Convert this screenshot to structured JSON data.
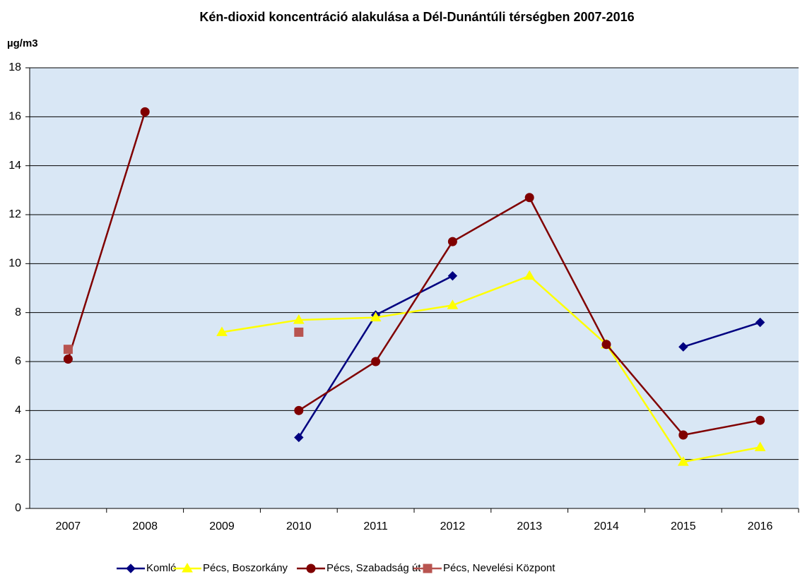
{
  "chart_data": {
    "type": "line",
    "title": "Kén-dioxid koncentráció alakulása a Dél-Dunántúli térségben 2007-2016",
    "y_axis_label": "µg/m3",
    "categories": [
      "2007",
      "2008",
      "2009",
      "2010",
      "2011",
      "2012",
      "2013",
      "2014",
      "2015",
      "2016"
    ],
    "series": [
      {
        "name": "Komló",
        "color": "#000080",
        "marker": "diamond",
        "values": [
          null,
          null,
          null,
          2.9,
          7.9,
          9.5,
          null,
          null,
          6.6,
          7.6
        ]
      },
      {
        "name": "Pécs, Boszorkány",
        "color": "#ffff00",
        "marker": "triangle",
        "values": [
          null,
          null,
          7.2,
          7.7,
          7.8,
          8.3,
          9.5,
          6.7,
          1.9,
          2.5
        ]
      },
      {
        "name": "Pécs, Szabadság út",
        "color": "#800000",
        "marker": "circle",
        "values": [
          6.1,
          16.2,
          null,
          4.0,
          6.0,
          10.9,
          12.7,
          6.7,
          3.0,
          3.6
        ]
      },
      {
        "name": "Pécs, Nevelési Központ",
        "color": "#b85450",
        "marker": "square",
        "values": [
          6.5,
          null,
          null,
          7.2,
          null,
          null,
          null,
          null,
          null,
          null
        ]
      }
    ],
    "ylim": [
      0,
      18
    ],
    "yticks": [
      0,
      2,
      4,
      6,
      8,
      10,
      12,
      14,
      16,
      18
    ],
    "grid": true,
    "legend": "bottom"
  }
}
